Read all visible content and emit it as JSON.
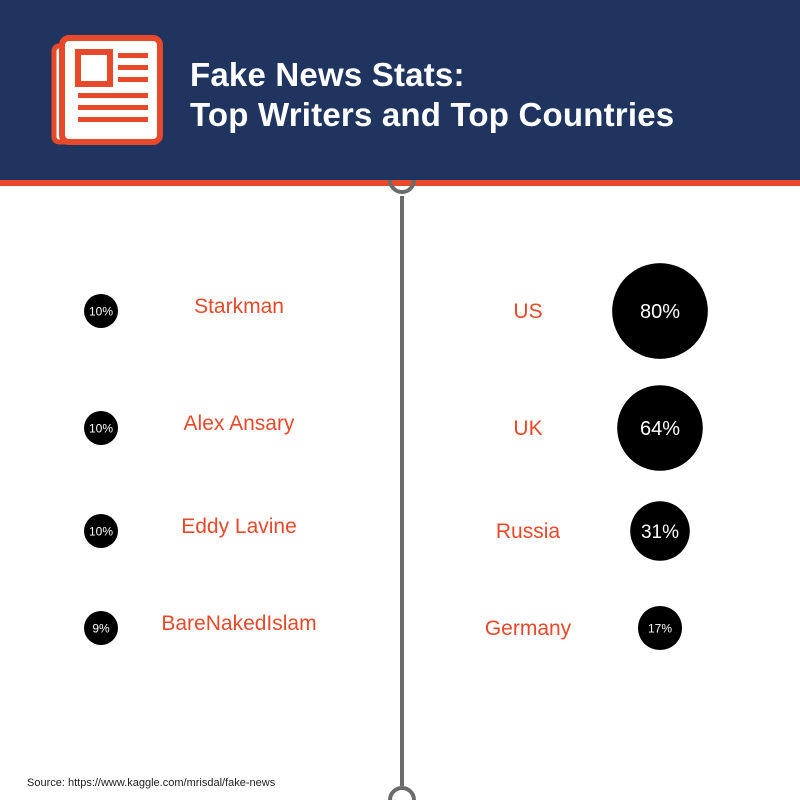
{
  "header": {
    "title_line1": "Fake News Stats:",
    "title_line2": "Top Writers and Top Countries",
    "icon": "newspaper-icon"
  },
  "colors": {
    "header_bg": "#1f3560",
    "accent": "#e8492a",
    "bubble": "#000000",
    "divider": "#6b6b6b"
  },
  "chart_data": [
    {
      "type": "bubble",
      "categories": [
        "Starkman",
        "Alex Ansary",
        "Eddy Lavine",
        "BareNakedIslam"
      ],
      "values": [
        10,
        10,
        10,
        9
      ],
      "value_labels": [
        "10%",
        "10%",
        "10%",
        "9%"
      ]
    },
    {
      "type": "bubble",
      "categories": [
        "US",
        "UK",
        "Russia",
        "Germany"
      ],
      "values": [
        80,
        64,
        31,
        17
      ],
      "value_labels": [
        "80%",
        "64%",
        "31%",
        "17%"
      ]
    }
  ],
  "footer": {
    "source": "Source: https://www.kaggle.com/mrisdal/fake-news"
  }
}
